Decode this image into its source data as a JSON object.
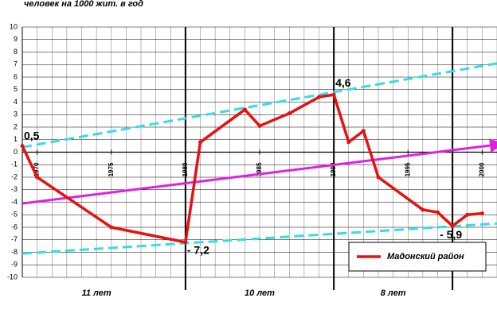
{
  "chart_data": {
    "type": "line",
    "title": "человек на 1000 жит. в год",
    "x": [
      1969,
      1970,
      1975,
      1980,
      1981,
      1984,
      1985,
      1987,
      1989,
      1990,
      1991,
      1992,
      1993,
      1996,
      1997,
      1998,
      1999,
      2000
    ],
    "series": [
      {
        "name": "Мадонский район",
        "color": "#e81010",
        "values": [
          0.5,
          -2,
          -6,
          -7.2,
          0.8,
          3.4,
          2.1,
          3.1,
          4.4,
          4.6,
          0.8,
          1.7,
          -2,
          -4.6,
          -4.8,
          -5.9,
          -5,
          -4.9
        ]
      }
    ],
    "trend_lines": [
      {
        "color": "#33dde8",
        "dashed": true,
        "x": [
          1969,
          2001
        ],
        "values": [
          0.4,
          7.1
        ]
      },
      {
        "color": "#33dde8",
        "dashed": true,
        "x": [
          1969,
          2001
        ],
        "values": [
          -8.1,
          -5.7
        ]
      },
      {
        "color": "#e020e0",
        "dashed": false,
        "arrow": true,
        "x": [
          1969,
          2001
        ],
        "values": [
          -4.1,
          0.6
        ]
      }
    ],
    "period_boundaries": [
      1980,
      1990,
      1998
    ],
    "period_labels": [
      {
        "x": 1974,
        "label": "11 лет"
      },
      {
        "x": 1985,
        "label": "10 лет"
      },
      {
        "x": 1994,
        "label": "8 лет"
      }
    ],
    "annotations": [
      {
        "x": 1969,
        "y": 0.5,
        "text": "0,5"
      },
      {
        "x": 1990,
        "y": 4.6,
        "text": "4,6"
      },
      {
        "x": 1980,
        "y": -7.2,
        "text": "- 7,2"
      },
      {
        "x": 1998,
        "y": -5.9,
        "text": "- 5,9"
      }
    ],
    "xlim": [
      1969,
      2001
    ],
    "xticks": [
      1970,
      1975,
      1980,
      1985,
      1990,
      1995,
      2000
    ],
    "ylim": [
      -10,
      10
    ],
    "yticks": [
      -10,
      -9,
      -8,
      -7,
      -6,
      -5,
      -4,
      -3,
      -2,
      -1,
      0,
      1,
      2,
      3,
      4,
      5,
      6,
      7,
      8,
      9,
      10
    ],
    "grid": true,
    "legend": "lower right"
  }
}
